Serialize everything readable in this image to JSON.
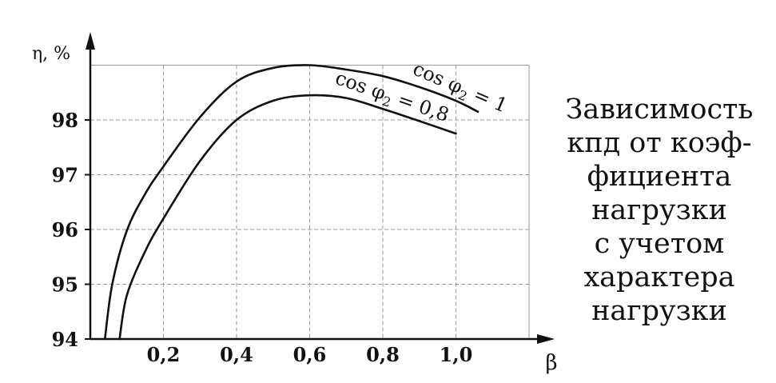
{
  "chart_data": {
    "type": "line",
    "xlabel": "β",
    "ylabel": "η, %",
    "xlim": [
      0,
      1.2
    ],
    "ylim": [
      94,
      99
    ],
    "x_ticks": [
      0.2,
      0.4,
      0.6,
      0.8,
      1.0
    ],
    "x_tick_labels": [
      "0,2",
      "0,4",
      "0,6",
      "0,8",
      "1,0"
    ],
    "y_ticks": [
      94,
      95,
      96,
      97,
      98
    ],
    "y_tick_labels": [
      "94",
      "95",
      "96",
      "97",
      "98"
    ],
    "grid": true,
    "series": [
      {
        "name": "cos φ₂ = 1",
        "label_parts": {
          "pre": "cos φ",
          "sub": "2",
          "post": " = 1"
        },
        "x": [
          0.04,
          0.06,
          0.1,
          0.15,
          0.2,
          0.3,
          0.4,
          0.5,
          0.6,
          0.7,
          0.8,
          0.9,
          1.0,
          1.06
        ],
        "y": [
          94.0,
          95.0,
          95.98,
          96.65,
          97.15,
          98.05,
          98.7,
          98.95,
          99.0,
          98.92,
          98.8,
          98.6,
          98.35,
          98.15
        ]
      },
      {
        "name": "cos φ₂ = 0,8",
        "label_parts": {
          "pre": "cos φ",
          "sub": "2",
          "post": " = 0,8"
        },
        "x": [
          0.08,
          0.1,
          0.15,
          0.2,
          0.3,
          0.4,
          0.5,
          0.6,
          0.7,
          0.8,
          0.9,
          1.0
        ],
        "y": [
          94.0,
          94.8,
          95.6,
          96.2,
          97.25,
          98.0,
          98.35,
          98.45,
          98.4,
          98.2,
          97.98,
          97.75
        ]
      }
    ]
  },
  "caption": {
    "lines": [
      "Зависимость",
      "кпд от коэф-",
      "фициента",
      "нагрузки",
      "с учетом",
      "характера",
      "нагрузки"
    ]
  }
}
